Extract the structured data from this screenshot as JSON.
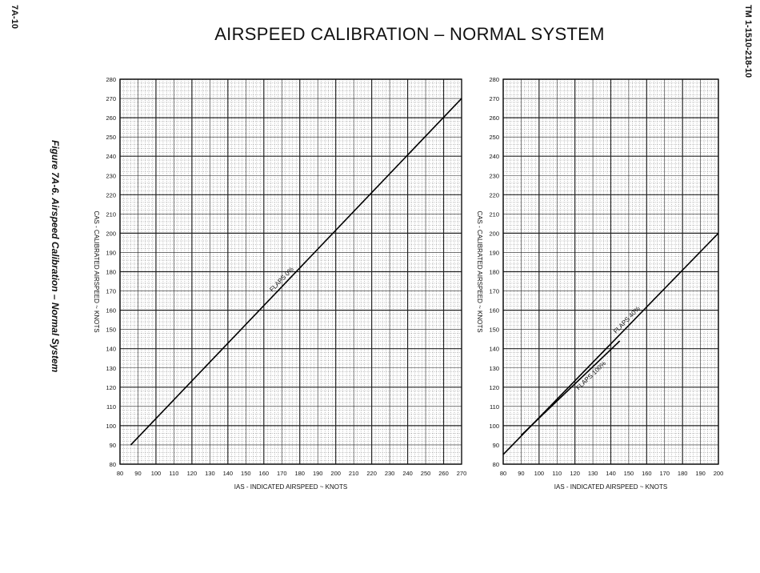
{
  "header": {
    "page_number": "7A-10",
    "document_id": "TM 1-1510-218-10",
    "title": "AIRSPEED CALIBRATION  –  NORMAL SYSTEM",
    "figure_caption": "Figure 7A-6.  Airspeed Calibration – Normal System"
  },
  "chart_data": [
    {
      "type": "line",
      "title": "",
      "xlabel": "IAS - INDICATED AIRSPEED ~ KNOTS",
      "ylabel": "CAS - CALIBRATED AIRSPEED ~ KNOTS",
      "xlim": [
        80,
        270
      ],
      "ylim": [
        80,
        280
      ],
      "x_ticks": [
        80,
        90,
        100,
        110,
        120,
        130,
        140,
        150,
        160,
        170,
        180,
        190,
        200,
        210,
        220,
        230,
        240,
        250,
        260,
        270
      ],
      "y_ticks": [
        80,
        90,
        100,
        110,
        120,
        130,
        140,
        150,
        160,
        170,
        180,
        190,
        200,
        210,
        220,
        230,
        240,
        250,
        260,
        270,
        280
      ],
      "grid": true,
      "series": [
        {
          "name": "FLAPS 0%",
          "x": [
            86,
            270
          ],
          "y": [
            90,
            270
          ],
          "label_at": 172
        }
      ]
    },
    {
      "type": "line",
      "title": "",
      "xlabel": "IAS - INDICATED AIRSPEED ~ KNOTS",
      "ylabel": "CAS - CALIBRATED AIRSPEED ~ KNOTS",
      "xlim": [
        80,
        200
      ],
      "ylim": [
        80,
        280
      ],
      "x_ticks": [
        80,
        90,
        100,
        110,
        120,
        130,
        140,
        150,
        160,
        170,
        180,
        190,
        200
      ],
      "y_ticks": [
        80,
        90,
        100,
        110,
        120,
        130,
        140,
        150,
        160,
        170,
        180,
        190,
        200,
        210,
        220,
        230,
        240,
        250,
        260,
        270,
        280
      ],
      "grid": true,
      "series": [
        {
          "name": "FLAPS 40%",
          "x": [
            80,
            200
          ],
          "y": [
            85,
            200
          ],
          "label_at": 151
        },
        {
          "name": "FLAPS 100%",
          "x": [
            90,
            145
          ],
          "y": [
            95,
            144
          ],
          "label_at": 127
        }
      ]
    }
  ]
}
